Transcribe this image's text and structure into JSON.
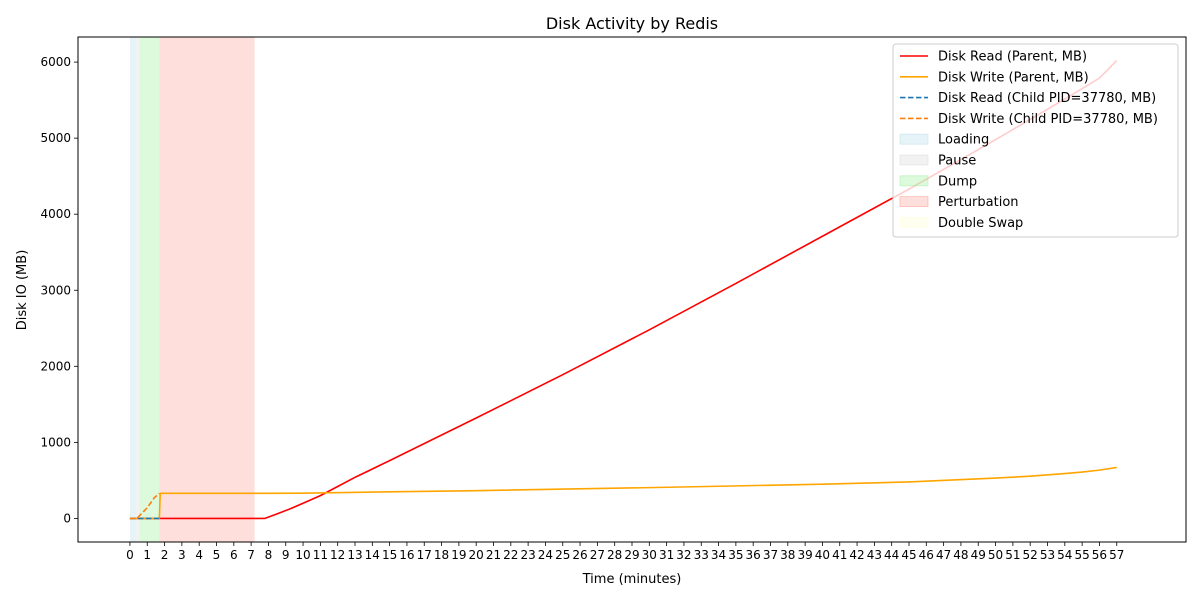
{
  "chart_data": {
    "type": "line",
    "title": "Disk Activity by Redis",
    "xlabel": "Time (minutes)",
    "ylabel": "Disk IO (MB)",
    "xlim": [
      -3,
      61
    ],
    "ylim": [
      -310,
      6330
    ],
    "x_ticks": [
      0,
      1,
      2,
      3,
      4,
      5,
      6,
      7,
      8,
      9,
      10,
      11,
      12,
      13,
      14,
      15,
      16,
      17,
      18,
      19,
      20,
      21,
      22,
      23,
      24,
      25,
      26,
      27,
      28,
      29,
      30,
      31,
      32,
      33,
      34,
      35,
      36,
      37,
      38,
      39,
      40,
      41,
      42,
      43,
      44,
      45,
      46,
      47,
      48,
      49,
      50,
      51,
      52,
      53,
      54,
      55,
      56,
      57
    ],
    "y_ticks": [
      0,
      1000,
      2000,
      3000,
      4000,
      5000,
      6000
    ],
    "grid": false,
    "legend_position": "top-right",
    "series": [
      {
        "name": "Disk Read (Parent, MB)",
        "color": "#ff0000",
        "dash": "solid",
        "points": [
          [
            0,
            0
          ],
          [
            1.7,
            0
          ],
          [
            7.8,
            0
          ],
          [
            8.5,
            60
          ],
          [
            9.3,
            130
          ],
          [
            10,
            200
          ],
          [
            11,
            300
          ],
          [
            12,
            420
          ],
          [
            13,
            540
          ],
          [
            15,
            760
          ],
          [
            20,
            1320
          ],
          [
            25,
            1890
          ],
          [
            30,
            2480
          ],
          [
            35,
            3090
          ],
          [
            40,
            3710
          ],
          [
            45,
            4330
          ],
          [
            50,
            4980
          ],
          [
            53,
            5380
          ],
          [
            55,
            5650
          ],
          [
            56,
            5790
          ],
          [
            57,
            6020
          ]
        ]
      },
      {
        "name": "Disk Write (Parent, MB)",
        "color": "#ffa500",
        "dash": "solid",
        "points": [
          [
            0,
            0
          ],
          [
            1.7,
            0
          ],
          [
            1.75,
            330
          ],
          [
            8,
            330
          ],
          [
            10,
            332
          ],
          [
            15,
            350
          ],
          [
            20,
            365
          ],
          [
            30,
            405
          ],
          [
            40,
            450
          ],
          [
            45,
            480
          ],
          [
            50,
            530
          ],
          [
            52,
            555
          ],
          [
            54,
            590
          ],
          [
            55,
            610
          ],
          [
            56,
            635
          ],
          [
            57,
            670
          ]
        ]
      },
      {
        "name": "Disk Read (Child PID=37780, MB)",
        "color": "#1f77b4",
        "dash": "dashed",
        "points": [
          [
            0,
            0
          ],
          [
            1.7,
            0
          ]
        ]
      },
      {
        "name": "Disk Write (Child PID=37780, MB)",
        "color": "#ff7f0e",
        "dash": "dashed",
        "points": [
          [
            0,
            0
          ],
          [
            0.4,
            0
          ],
          [
            1.0,
            140
          ],
          [
            1.4,
            270
          ],
          [
            1.7,
            330
          ]
        ]
      }
    ],
    "phases": [
      {
        "name": "Loading",
        "start": 0.0,
        "end": 0.35,
        "color": "#add8e6",
        "opacity": 0.3
      },
      {
        "name": "Pause",
        "start": 0.35,
        "end": 0.55,
        "color": "#d3d3d3",
        "opacity": 0.3
      },
      {
        "name": "Dump",
        "start": 0.55,
        "end": 1.7,
        "color": "#90ee90",
        "opacity": 0.3
      },
      {
        "name": "Perturbation",
        "start": 1.7,
        "end": 7.2,
        "color": "#fa8072",
        "opacity": 0.25
      },
      {
        "name": "Double Swap",
        "start": 0,
        "end": 0,
        "color": "#ffffe0",
        "opacity": 0.5
      }
    ]
  }
}
